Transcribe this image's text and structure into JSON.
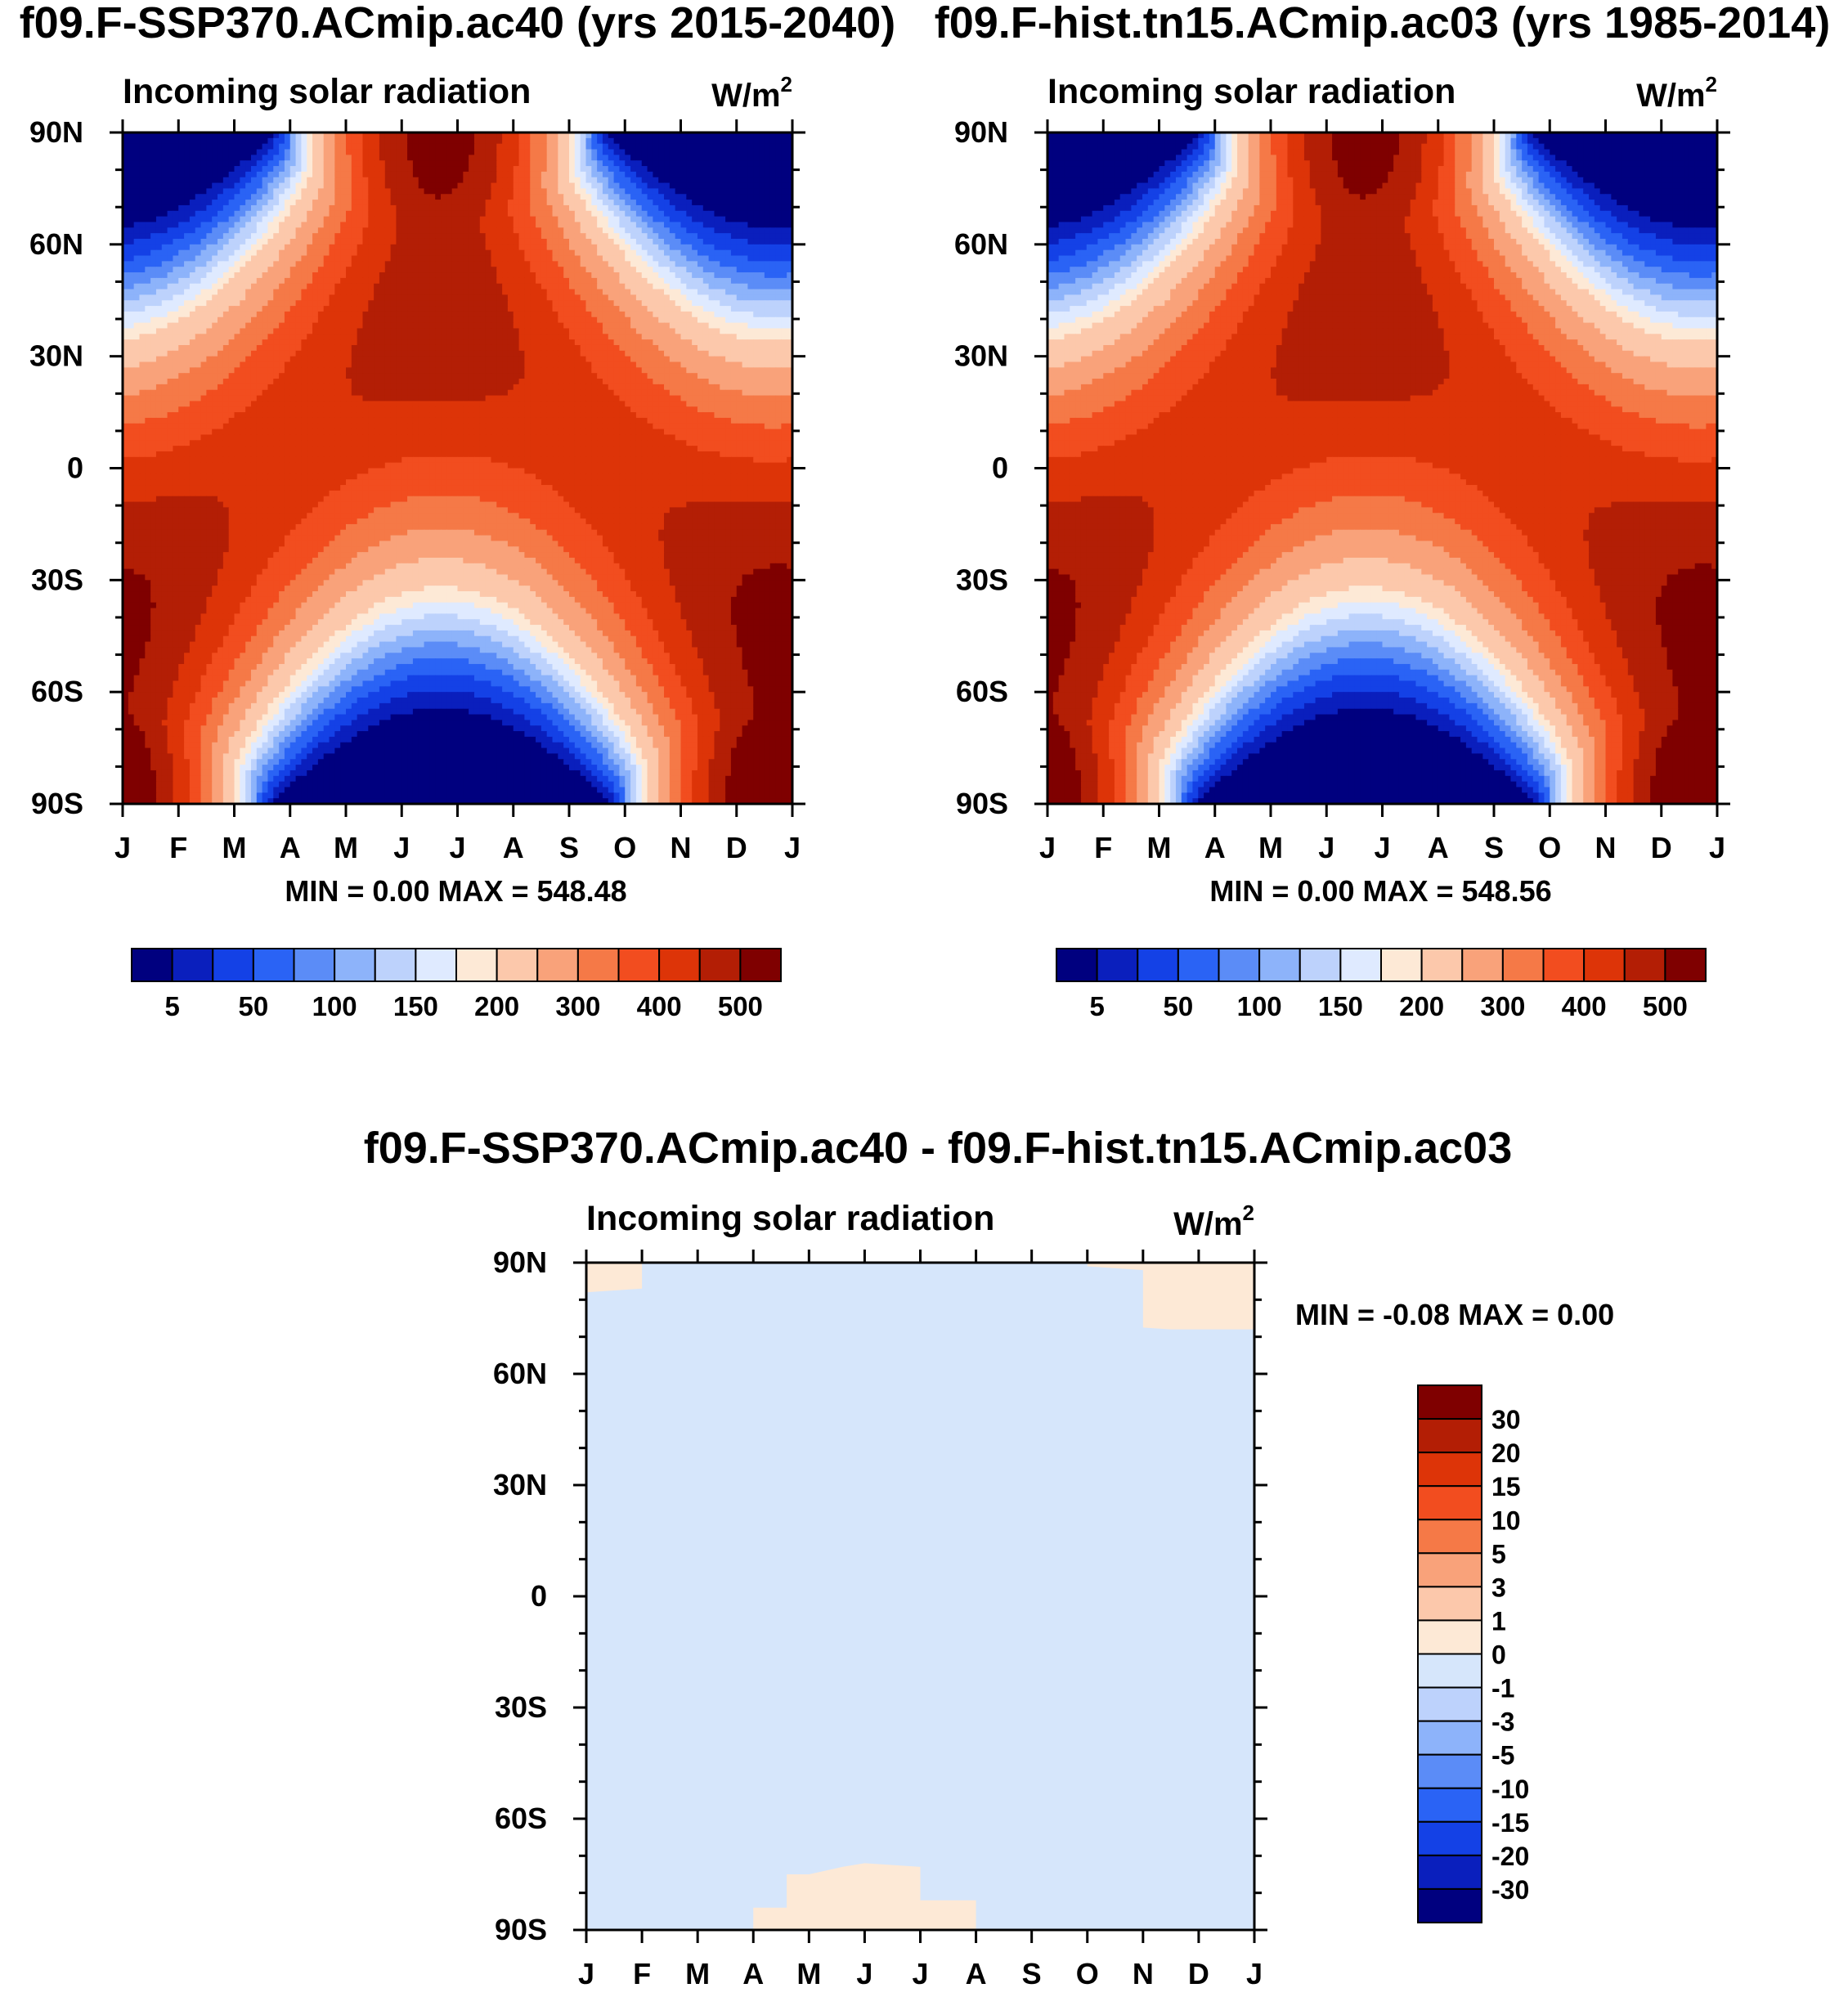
{
  "chart_data": [
    {
      "type": "contour",
      "title": "f09.F-SSP370.ACmip.ac40 (yrs 2015-2040)",
      "subtitle": "Incoming solar radiation",
      "units_base": "W/m",
      "units_exp": "2",
      "x_ticks": [
        "J",
        "F",
        "M",
        "A",
        "M",
        "J",
        "J",
        "A",
        "S",
        "O",
        "N",
        "D",
        "J"
      ],
      "y_ticks": [
        "90N",
        "60N",
        "30N",
        "0",
        "30S",
        "60S",
        "90S"
      ],
      "ylim": [
        -90,
        90
      ],
      "stats": "MIN =    0.00 MAX = 548.48",
      "levels": [
        "5",
        "50",
        "100",
        "150",
        "200",
        "300",
        "400",
        "500"
      ],
      "colors": [
        "#00007f",
        "#0a1fbd",
        "#1441e6",
        "#2a63f5",
        "#5b8cf7",
        "#8db3fa",
        "#bdd2fc",
        "#dfeaff",
        "#fde9d6",
        "#fcc8ab",
        "#f9a27a",
        "#f57947",
        "#f24d1f",
        "#dd3408",
        "#b31e05",
        "#7f0000"
      ],
      "values_min": 0.0,
      "values_max": 548.48
    },
    {
      "type": "contour",
      "title": "f09.F-hist.tn15.ACmip.ac03 (yrs 1985-2014)",
      "subtitle": "Incoming solar radiation",
      "units_base": "W/m",
      "units_exp": "2",
      "x_ticks": [
        "J",
        "F",
        "M",
        "A",
        "M",
        "J",
        "J",
        "A",
        "S",
        "O",
        "N",
        "D",
        "J"
      ],
      "y_ticks": [
        "90N",
        "60N",
        "30N",
        "0",
        "30S",
        "60S",
        "90S"
      ],
      "ylim": [
        -90,
        90
      ],
      "stats": "MIN =    0.00 MAX = 548.56",
      "levels": [
        "5",
        "50",
        "100",
        "150",
        "200",
        "300",
        "400",
        "500"
      ],
      "colors": [
        "#00007f",
        "#0a1fbd",
        "#1441e6",
        "#2a63f5",
        "#5b8cf7",
        "#8db3fa",
        "#bdd2fc",
        "#dfeaff",
        "#fde9d6",
        "#fcc8ab",
        "#f9a27a",
        "#f57947",
        "#f24d1f",
        "#dd3408",
        "#b31e05",
        "#7f0000"
      ],
      "values_min": 0.0,
      "values_max": 548.56
    },
    {
      "type": "contour",
      "title": "f09.F-SSP370.ACmip.ac40 - f09.F-hist.tn15.ACmip.ac03",
      "subtitle": "Incoming solar radiation",
      "units_base": "W/m",
      "units_exp": "2",
      "x_ticks": [
        "J",
        "F",
        "M",
        "A",
        "M",
        "J",
        "J",
        "A",
        "S",
        "O",
        "N",
        "D",
        "J"
      ],
      "y_ticks": [
        "90N",
        "60N",
        "30N",
        "0",
        "30S",
        "60S",
        "90S"
      ],
      "ylim": [
        -90,
        90
      ],
      "stats": "MIN =  -0.08 MAX =    0.00",
      "levels": [
        "30",
        "20",
        "15",
        "10",
        "5",
        "3",
        "1",
        "0",
        "-1",
        "-3",
        "-5",
        "-10",
        "-15",
        "-20",
        "-30"
      ],
      "colors": [
        "#7f0000",
        "#b31e05",
        "#dd3408",
        "#f24d1f",
        "#f57947",
        "#f9a27a",
        "#fcc8ab",
        "#fde9d6",
        "#d6e6fb",
        "#bdd2fc",
        "#8db3fa",
        "#5b8cf7",
        "#2a63f5",
        "#1441e6",
        "#0a1fbd",
        "#00007f"
      ],
      "values_min": -0.08,
      "values_max": 0.0
    }
  ]
}
